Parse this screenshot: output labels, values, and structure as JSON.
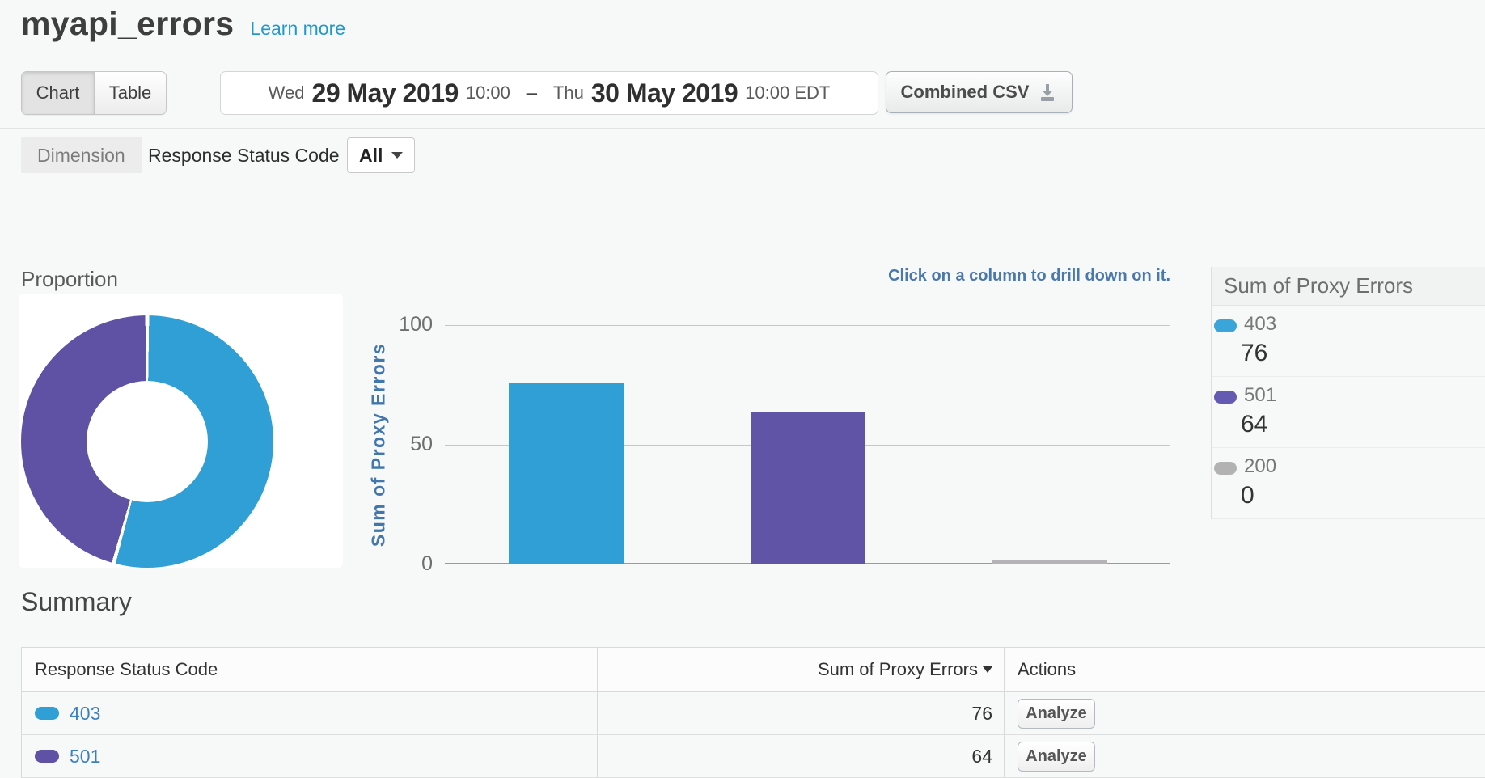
{
  "page": {
    "title": "myapi_errors",
    "learn_more": "Learn more"
  },
  "toolbar": {
    "view_toggle": {
      "chart": "Chart",
      "table": "Table",
      "active": "Chart"
    },
    "date_range": {
      "start_day": "Wed",
      "start_date": "29 May 2019",
      "start_time": "10:00",
      "separator": "–",
      "end_day": "Thu",
      "end_date": "30 May 2019",
      "end_time": "10:00 EDT"
    },
    "export_button": "Combined CSV",
    "export_icon": "download-icon"
  },
  "dimension": {
    "label": "Dimension",
    "name": "Response Status Code",
    "filter_value": "All"
  },
  "chart_data": [
    {
      "type": "pie",
      "title": "Proportion",
      "donut": true,
      "labels": [
        "403",
        "501"
      ],
      "values": [
        76,
        64
      ],
      "colors": [
        "#2f9fd6",
        "#5f51a4"
      ]
    },
    {
      "type": "bar",
      "title": "Sum of Proxy Errors",
      "categories": [
        "403",
        "501",
        "200"
      ],
      "values": [
        76,
        64,
        0
      ],
      "colors": [
        "#2f9fd6",
        "#6054a6",
        "#b5b3b6"
      ],
      "xlabel": "",
      "ylabel": "Sum of Proxy Errors",
      "ylim": [
        0,
        100
      ],
      "yticks": [
        100,
        50,
        0
      ],
      "grid": true,
      "legend_position": "right",
      "annotation": "Click on a column to drill down on it."
    }
  ],
  "legend": {
    "title": "Sum of Proxy Errors",
    "items": [
      {
        "label": "403",
        "value": "76",
        "color": "#3aa5d9"
      },
      {
        "label": "501",
        "value": "64",
        "color": "#655ab2"
      },
      {
        "label": "200",
        "value": "0",
        "color": "#b2b2b2"
      }
    ]
  },
  "summary": {
    "title": "Summary",
    "columns": [
      "Response Status Code",
      "Sum of Proxy Errors",
      "Actions"
    ],
    "rows": [
      {
        "code": "403",
        "value": "76",
        "action": "Analyze",
        "color": "#2f9fd6"
      },
      {
        "code": "501",
        "value": "64",
        "action": "Analyze",
        "color": "#5f51a4"
      }
    ]
  },
  "colors": {
    "accent_blue": "#2f9fd6",
    "accent_purple": "#5f51a4",
    "neutral_gray": "#b5b3b6",
    "axis_line": "#9097c9",
    "link_blue": "#3a80c1",
    "hint_blue": "#4a77ac"
  }
}
